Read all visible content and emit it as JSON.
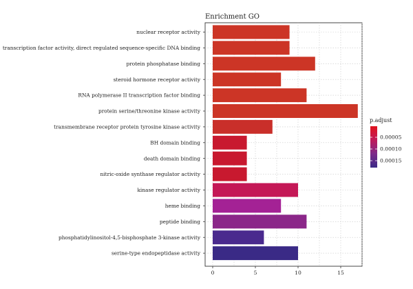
{
  "chart_data": {
    "type": "bar",
    "orientation": "horizontal",
    "title": "Enrichment GO",
    "xlabel": "",
    "ylabel": "",
    "xlim": [
      0,
      18
    ],
    "xticks": [
      0,
      5,
      10,
      15
    ],
    "grid": true,
    "categories": [
      "nuclear receptor activity",
      "transcription factor activity, direct regulated sequence-specific DNA binding",
      "protein phosphatase binding",
      "steroid hormone receptor activity",
      "RNA polymerase II transcription factor binding",
      "protein serine/threonine kinase activity",
      "transmembrane receptor protein tyrosine kinase activity",
      "BH domain binding",
      "death domain binding",
      "nitric-oxide synthase regulator activity",
      "kinase regulator activity",
      "heme binding",
      "peptide binding",
      "phosphatidylinositol-4,5-bisphosphate 3-kinase activity",
      "serine-type endopeptidase activity"
    ],
    "values": [
      9,
      9,
      12,
      8,
      11,
      17,
      7,
      4,
      4,
      4,
      10,
      8,
      11,
      6,
      10
    ],
    "colors": [
      "#cc3526",
      "#cc3526",
      "#cc3526",
      "#cc3526",
      "#cc3526",
      "#cc3526",
      "#c92f2a",
      "#c8192f",
      "#c8192f",
      "#c8192f",
      "#c41856",
      "#a42295",
      "#8b2789",
      "#4a2a8e",
      "#3a2a86"
    ],
    "legend": {
      "title": "p.adjust",
      "position": "right",
      "labels": [
        "0.00005",
        "0.00010",
        "0.00015"
      ],
      "gradient": [
        "#e0141e",
        "#c01a5a",
        "#7d2a8a",
        "#3a2a86"
      ]
    }
  }
}
